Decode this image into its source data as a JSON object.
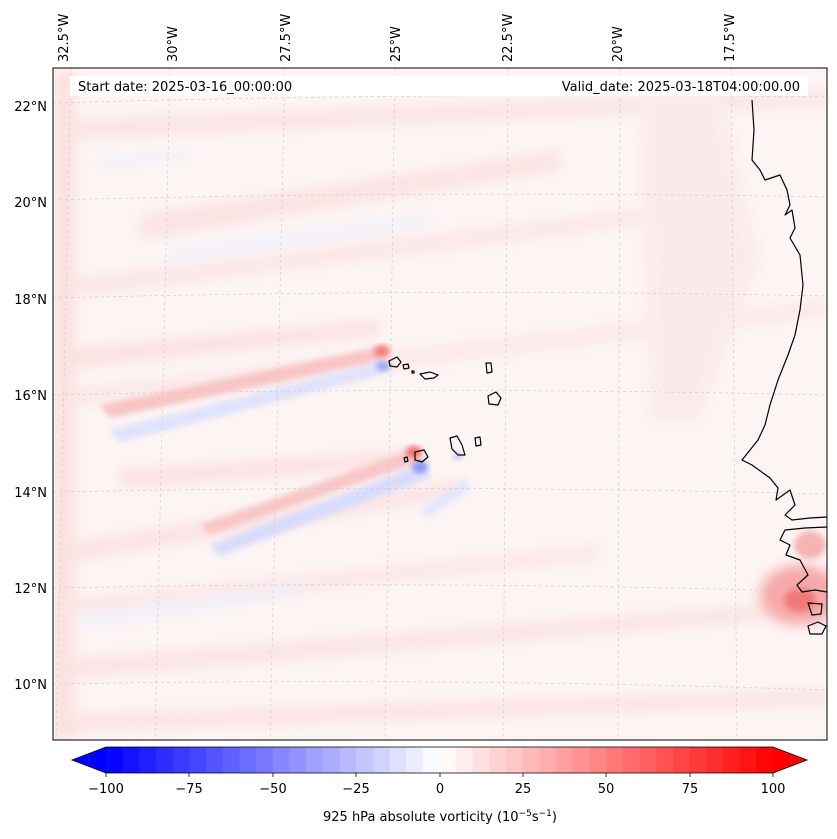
{
  "map": {
    "start_date_label": "Start date: 2025-03-16_00:00:00",
    "valid_date_label": "Valid_date: 2025-03-18T04:00:00.00",
    "lon_labels": [
      "32.5°W",
      "30°W",
      "27.5°W",
      "25°W",
      "22.5°W",
      "20°W",
      "17.5°W"
    ],
    "lat_labels": [
      "22°N",
      "20°N",
      "18°N",
      "16°N",
      "14°N",
      "12°N",
      "10°N"
    ],
    "extent": {
      "lon_west": -33.0,
      "lon_east": -15.5,
      "lat_south": 8.9,
      "lat_north": 22.7
    },
    "gridlines": "dashed",
    "coastline_color": "#000000"
  },
  "colorbar": {
    "label_main": "925 hPa absolute vorticity (10",
    "label_exp1": "−5",
    "label_mid": "s",
    "label_exp2": "−1",
    "label_end": ")",
    "ticks": [
      "−100",
      "−75",
      "−50",
      "−25",
      "0",
      "25",
      "50",
      "75",
      "100"
    ],
    "range": [
      -100,
      100
    ],
    "levels": 41,
    "extend": "both",
    "cmap": "bwr",
    "colors": {
      "negative": "#0000ff",
      "zero": "#ffffff",
      "positive": "#ff0000"
    }
  }
}
